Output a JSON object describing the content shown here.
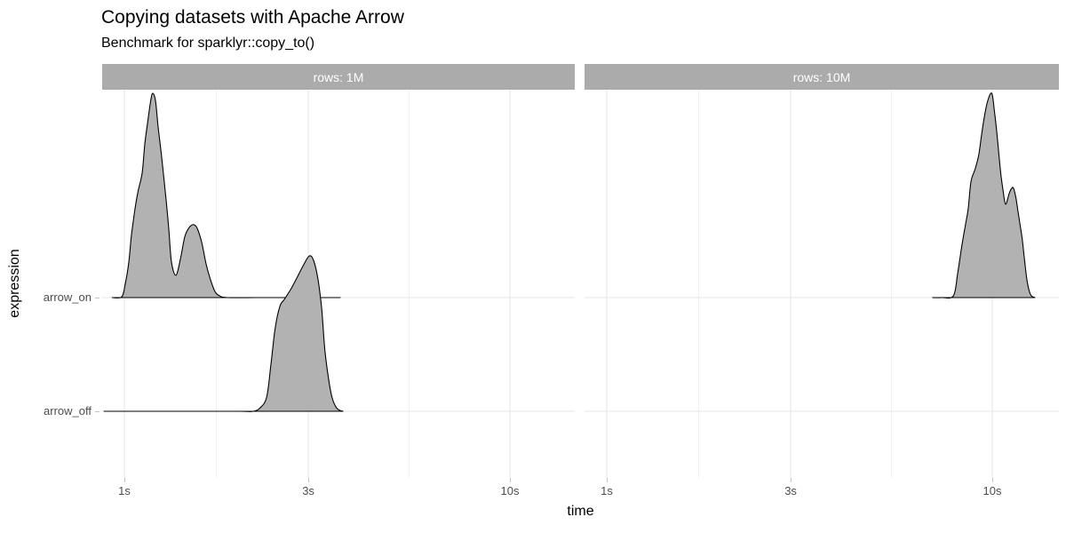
{
  "title": "Copying datasets with Apache Arrow",
  "subtitle": "Benchmark for sparklyr::copy_to()",
  "axes": {
    "x_title": "time",
    "y_title": "expression"
  },
  "colors": {
    "background": "#FFFFFF",
    "strip_fill": "#ABABAB",
    "strip_text": "#FFFFFF",
    "ridge_fill": "#B2B2B2",
    "ridge_stroke": "#000000",
    "grid_major": "#E4E4E4",
    "grid_minor": "#F1F1F1",
    "tick_mark": "#C3C3C3",
    "tick_label": "#4D4D4D",
    "title_text": "#000000"
  },
  "chart_data": {
    "type": "area",
    "variant": "faceted-ridgeline-density",
    "x_scale": "log10",
    "x_range_seconds": [
      0.88,
      15
    ],
    "x_ticks": [
      {
        "t": 1,
        "label": "1s"
      },
      {
        "t": 3,
        "label": "3s"
      },
      {
        "t": 10,
        "label": "10s"
      }
    ],
    "x_minor_ticks": [
      1.732,
      5.477
    ],
    "categories": [
      {
        "key": "arrow_on",
        "label": "arrow_on"
      },
      {
        "key": "arrow_off",
        "label": "arrow_off"
      }
    ],
    "facets": [
      {
        "label": "rows: 1M",
        "ridges": [
          {
            "category": "arrow_on",
            "peaks_seconds": [
              1.19,
              1.51
            ],
            "points": [
              [
                0.93,
                0
              ],
              [
                0.984,
                0.004
              ],
              [
                1.005,
                0.065
              ],
              [
                1.027,
                0.174
              ],
              [
                1.043,
                0.304
              ],
              [
                1.066,
                0.435
              ],
              [
                1.085,
                0.52
              ],
              [
                1.112,
                0.609
              ],
              [
                1.13,
                0.752
              ],
              [
                1.154,
                0.883
              ],
              [
                1.172,
                0.97
              ],
              [
                1.185,
                1.0
              ],
              [
                1.204,
                0.965
              ],
              [
                1.223,
                0.839
              ],
              [
                1.25,
                0.683
              ],
              [
                1.283,
                0.478
              ],
              [
                1.304,
                0.335
              ],
              [
                1.325,
                0.174
              ],
              [
                1.36,
                0.109
              ],
              [
                1.397,
                0.187
              ],
              [
                1.434,
                0.296
              ],
              [
                1.473,
                0.343
              ],
              [
                1.512,
                0.357
              ],
              [
                1.545,
                0.339
              ],
              [
                1.587,
                0.27
              ],
              [
                1.629,
                0.165
              ],
              [
                1.673,
                0.087
              ],
              [
                1.718,
                0.03
              ],
              [
                1.764,
                0.009
              ],
              [
                1.85,
                0
              ],
              [
                2.2,
                0
              ],
              [
                2.6,
                0
              ],
              [
                3.0,
                0
              ],
              [
                3.3,
                0
              ],
              [
                3.63,
                0
              ]
            ]
          },
          {
            "category": "arrow_off",
            "peaks_seconds": [
              3.0
            ],
            "points": [
              [
                0.886,
                0
              ],
              [
                1.2,
                0
              ],
              [
                1.6,
                0
              ],
              [
                2.0,
                0
              ],
              [
                2.16,
                0
              ],
              [
                2.25,
                0.017
              ],
              [
                2.34,
                0.07
              ],
              [
                2.4,
                0.23
              ],
              [
                2.46,
                0.404
              ],
              [
                2.53,
                0.513
              ],
              [
                2.6,
                0.548
              ],
              [
                2.7,
                0.596
              ],
              [
                2.8,
                0.652
              ],
              [
                2.91,
                0.713
              ],
              [
                3.02,
                0.761
              ],
              [
                3.1,
                0.735
              ],
              [
                3.18,
                0.643
              ],
              [
                3.25,
                0.5
              ],
              [
                3.31,
                0.304
              ],
              [
                3.39,
                0.152
              ],
              [
                3.46,
                0.065
              ],
              [
                3.55,
                0.017
              ],
              [
                3.63,
                0.004
              ],
              [
                3.69,
                0
              ]
            ]
          }
        ]
      },
      {
        "label": "rows: 10M",
        "ridges": [
          {
            "category": "arrow_on",
            "peaks_seconds": [
              10.0,
              11.3
            ],
            "points": [
              [
                7.0,
                0
              ],
              [
                7.4,
                0
              ],
              [
                7.93,
                0.009
              ],
              [
                8.13,
                0.117
              ],
              [
                8.35,
                0.261
              ],
              [
                8.53,
                0.361
              ],
              [
                8.66,
                0.435
              ],
              [
                8.8,
                0.565
              ],
              [
                8.98,
                0.617
              ],
              [
                9.03,
                0.63
              ],
              [
                9.22,
                0.696
              ],
              [
                9.36,
                0.783
              ],
              [
                9.51,
                0.87
              ],
              [
                9.71,
                0.957
              ],
              [
                9.97,
                1.0
              ],
              [
                10.13,
                0.913
              ],
              [
                10.29,
                0.796
              ],
              [
                10.5,
                0.622
              ],
              [
                10.67,
                0.522
              ],
              [
                10.83,
                0.457
              ],
              [
                11.06,
                0.509
              ],
              [
                11.23,
                0.535
              ],
              [
                11.35,
                0.535
              ],
              [
                11.52,
                0.487
              ],
              [
                11.7,
                0.404
              ],
              [
                11.95,
                0.291
              ],
              [
                12.14,
                0.174
              ],
              [
                12.33,
                0.074
              ],
              [
                12.58,
                0.013
              ],
              [
                12.9,
                0
              ]
            ]
          }
        ]
      }
    ]
  }
}
